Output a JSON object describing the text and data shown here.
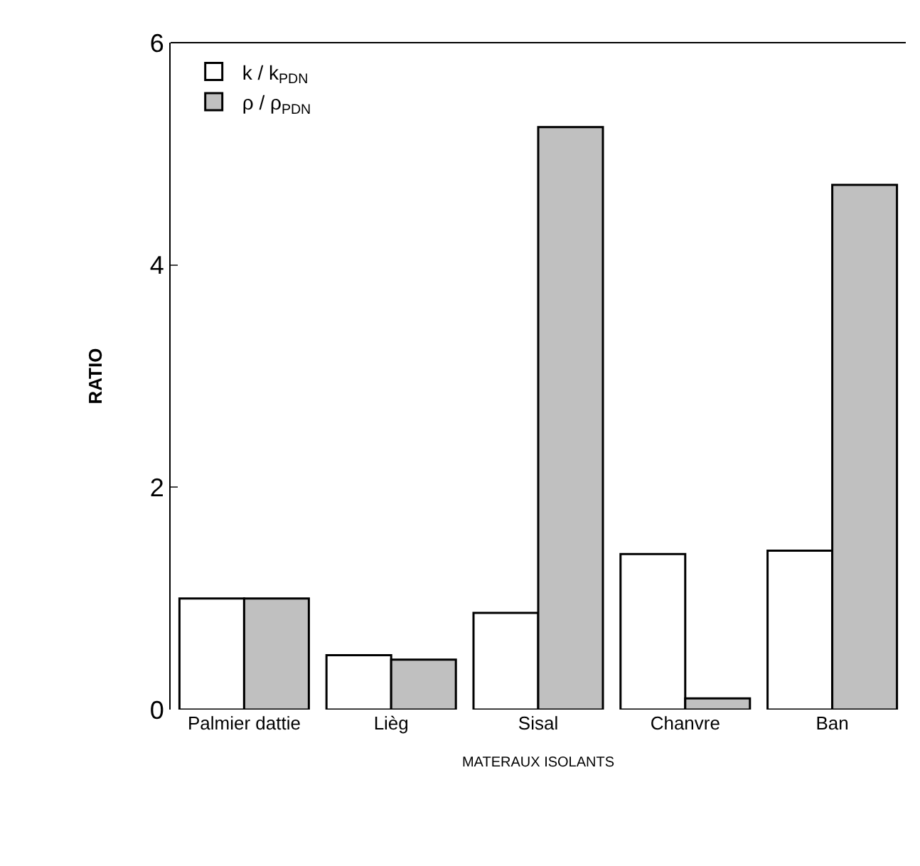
{
  "chart_data": {
    "type": "bar",
    "ylabel": "RATIO",
    "xlabel": "MATERAUX ISOLANTS",
    "categories": [
      "Palmier dattie",
      "Lièg",
      "Sisal",
      "Chanvre",
      "Ban"
    ],
    "series": [
      {
        "name": "k / k$_{PDN}$",
        "color": "#ffffff",
        "values": [
          1.0,
          0.49,
          0.87,
          1.4,
          1.43
        ]
      },
      {
        "name": "ρ / ρ$_{PDN}$",
        "color": "#c0c0c0",
        "values": [
          1.0,
          0.45,
          5.24,
          0.1,
          4.72
        ]
      }
    ],
    "ylim": [
      0,
      6
    ],
    "yticks": [
      0,
      2,
      4,
      6
    ],
    "grid": false,
    "legend": "top left"
  }
}
